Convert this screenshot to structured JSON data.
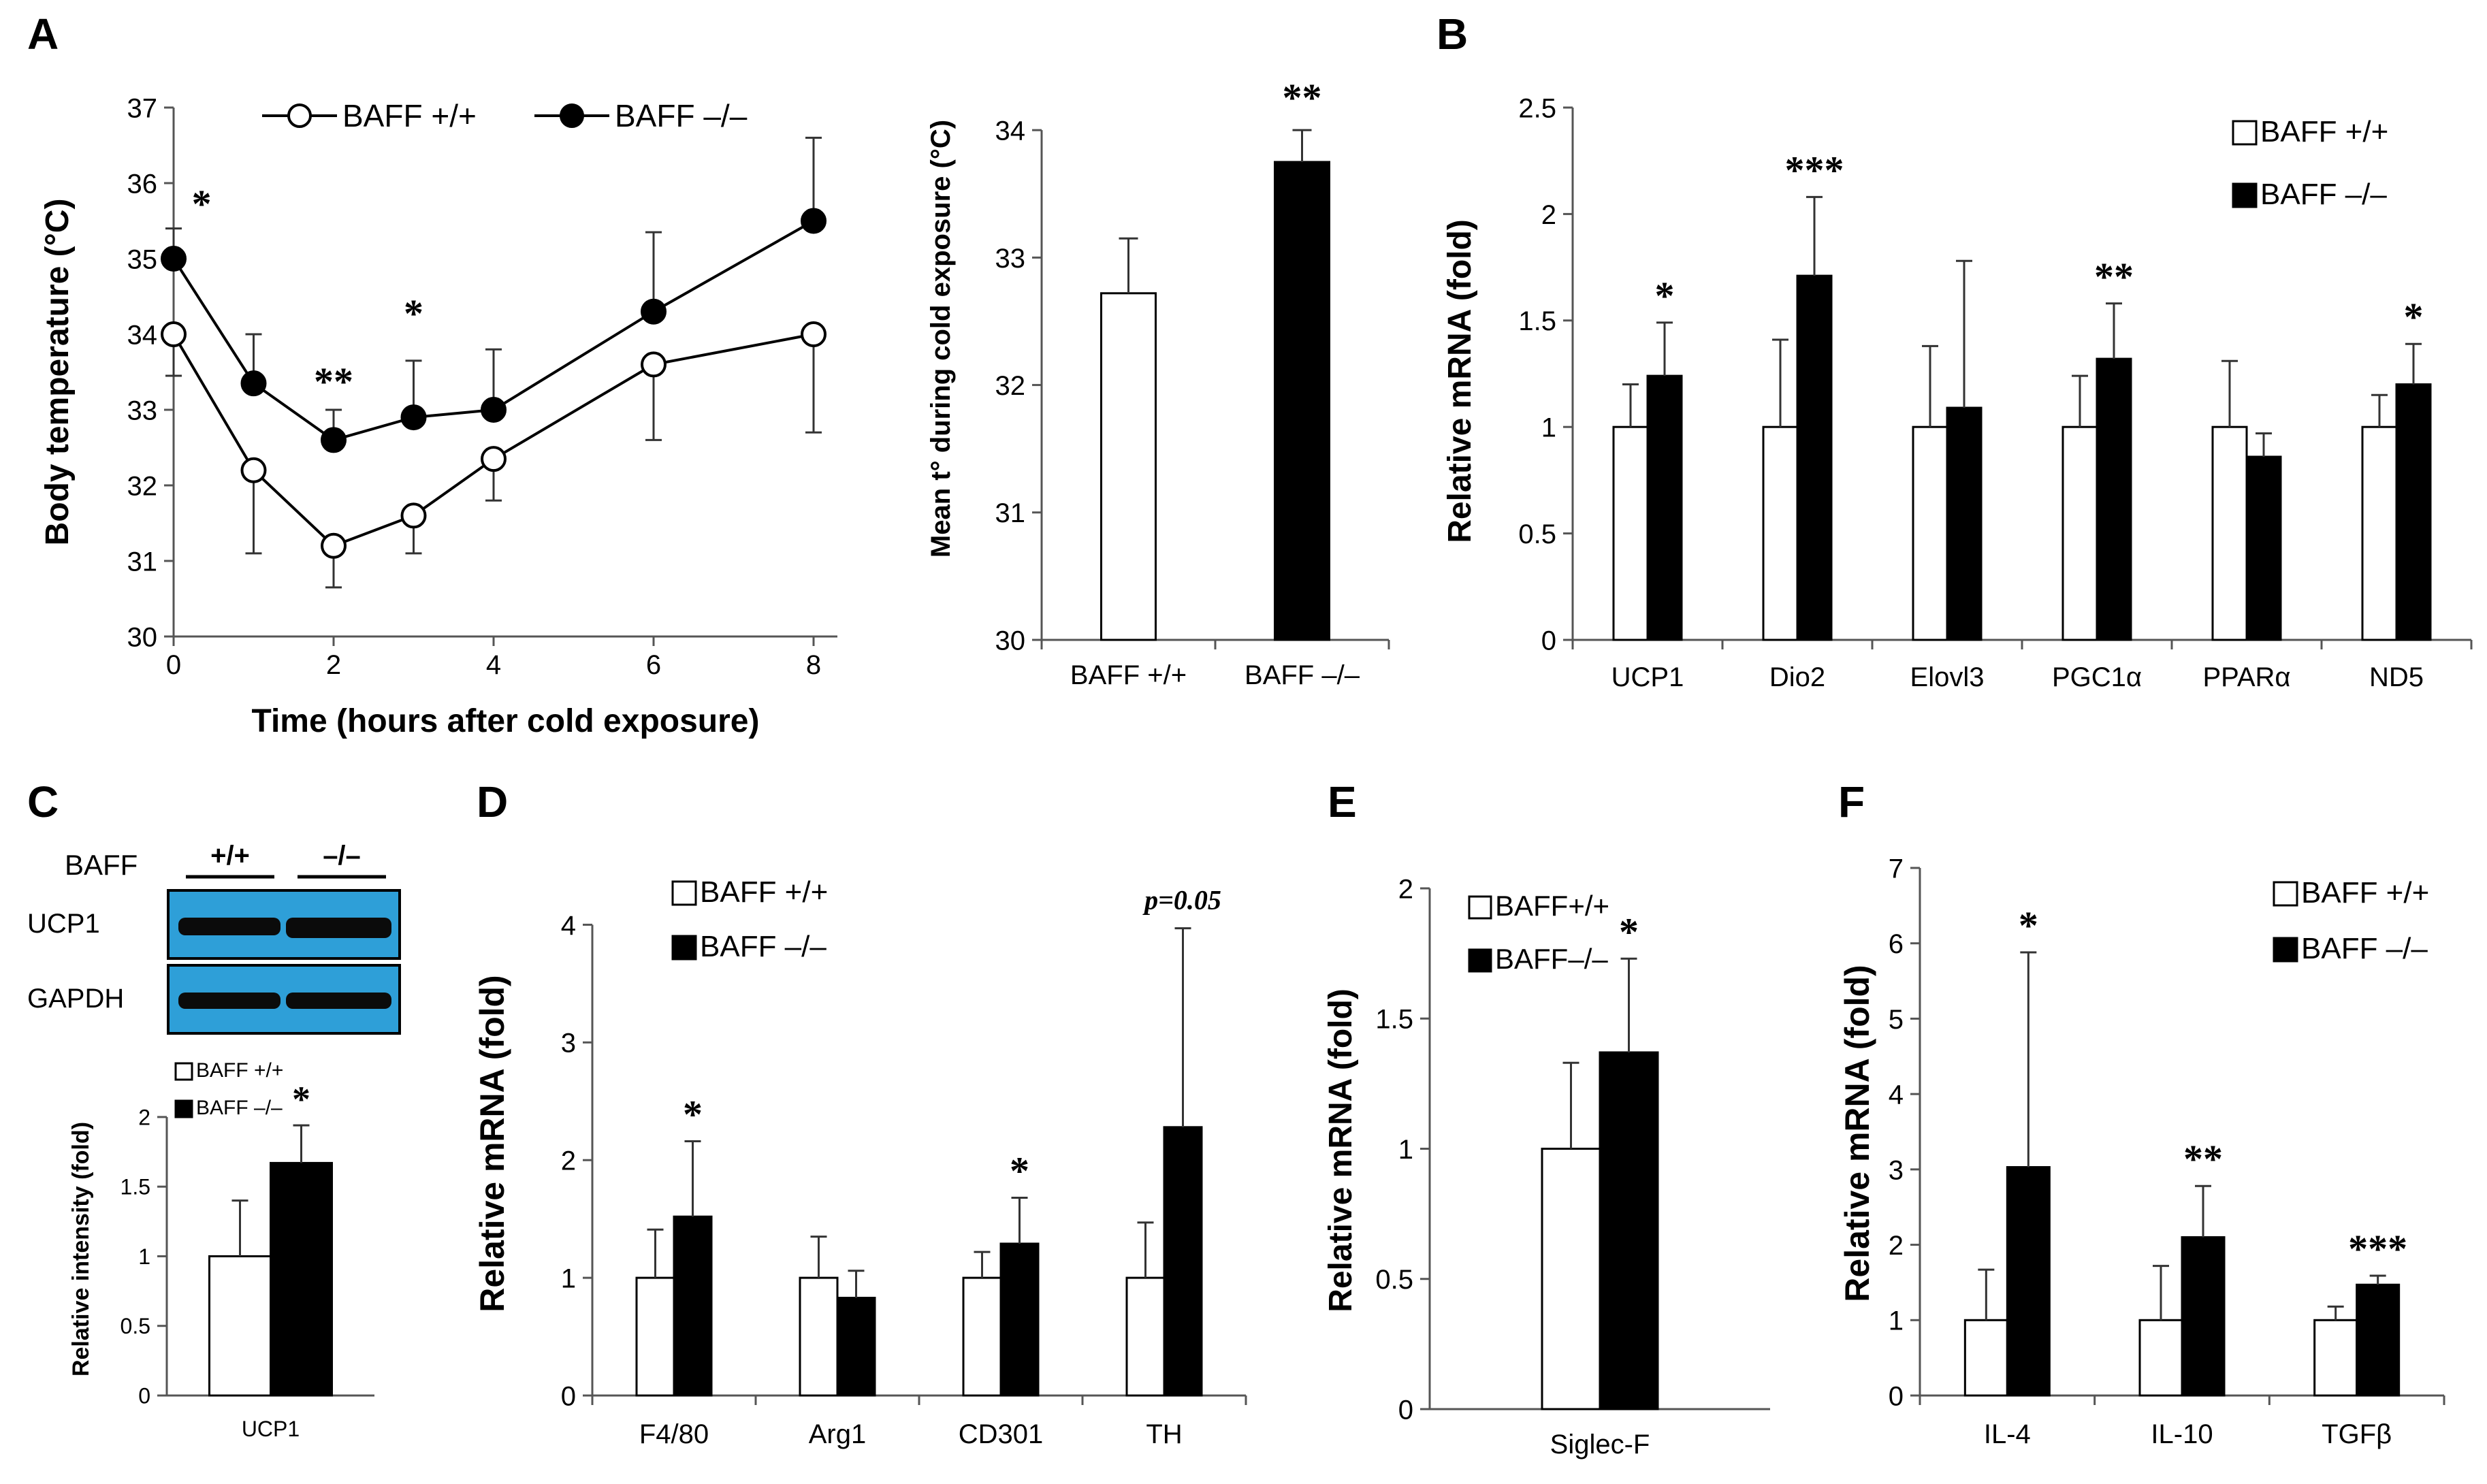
{
  "figure": {
    "panel_letters": {
      "A": "A",
      "B": "B",
      "C": "C",
      "D": "D",
      "E": "E",
      "F": "F"
    },
    "colors": {
      "wt_fill": "#ffffff",
      "ko_fill": "#000000",
      "blot_bg": "#2e9fd8",
      "band": "#0b0b0b"
    }
  },
  "chart_data": [
    {
      "id": "A1",
      "type": "line",
      "xlabel": "Time (hours after cold exposure)",
      "ylabel": "Body temperature (°C)",
      "ylim": [
        30,
        37
      ],
      "xlim": [
        0,
        8
      ],
      "xticks": [
        "0",
        "2",
        "4",
        "6",
        "8"
      ],
      "yticks": [
        "30",
        "31",
        "32",
        "33",
        "34",
        "35",
        "36",
        "37"
      ],
      "x": [
        0,
        1,
        2,
        3,
        4,
        6,
        8
      ],
      "series": [
        {
          "name": "BAFF +/+",
          "values": [
            34.0,
            32.2,
            31.2,
            31.6,
            32.35,
            33.6,
            34.0
          ],
          "errors": [
            0.55,
            1.1,
            0.55,
            0.5,
            0.55,
            1.0,
            1.3
          ],
          "marker": "open"
        },
        {
          "name": "BAFF –/–",
          "values": [
            35.0,
            33.35,
            32.6,
            32.9,
            33.0,
            34.3,
            35.5
          ],
          "errors": [
            0.4,
            0.65,
            0.4,
            0.75,
            0.8,
            1.05,
            1.1
          ],
          "marker": "filled"
        }
      ],
      "annotations": [
        {
          "x": 0.35,
          "y": 35.55,
          "text": "*"
        },
        {
          "x": 2,
          "y": 33.2,
          "text": "**"
        },
        {
          "x": 3,
          "y": 34.1,
          "text": "*"
        }
      ],
      "legend": "top"
    },
    {
      "id": "A2",
      "type": "bar",
      "ylabel": "Mean t° during cold exposure (°C)",
      "ylim": [
        30,
        34.3
      ],
      "yticks": [
        "30",
        "31",
        "32",
        "33",
        "34"
      ],
      "categories": [
        "BAFF +/+",
        "BAFF –/–"
      ],
      "values": [
        32.72,
        33.75
      ],
      "errors": [
        0.43,
        0.25
      ],
      "annotations": [
        {
          "index": 1,
          "text": "**"
        }
      ]
    },
    {
      "id": "B",
      "type": "bar",
      "ylabel": "Relative mRNA (fold)",
      "ylim": [
        0,
        2.5
      ],
      "yticks": [
        "0",
        "0.5",
        "1",
        "1.5",
        "2",
        "2.5"
      ],
      "categories": [
        "UCP1",
        "Dio2",
        "Elovl3",
        "PGC1α",
        "PPARα",
        "ND5"
      ],
      "series": [
        {
          "name": "BAFF +/+",
          "values": [
            1,
            1,
            1,
            1,
            1,
            1
          ],
          "errors": [
            0.2,
            0.41,
            0.38,
            0.24,
            0.31,
            0.15
          ]
        },
        {
          "name": "BAFF –/–",
          "values": [
            1.24,
            1.71,
            1.09,
            1.32,
            0.86,
            1.2
          ],
          "errors": [
            0.25,
            0.37,
            0.69,
            0.26,
            0.11,
            0.19
          ]
        }
      ],
      "annotations": [
        "*",
        "***",
        "",
        "**",
        "",
        "*"
      ],
      "legend": "top-right"
    },
    {
      "id": "C",
      "type": "bar",
      "ylabel": "Relative intensity (fold)",
      "ylim": [
        0,
        2.2
      ],
      "yticks": [
        "0",
        "0.5",
        "1",
        "1.5",
        "2"
      ],
      "categories": [
        "UCP1"
      ],
      "series": [
        {
          "name": "BAFF +/+",
          "values": [
            1
          ],
          "errors": [
            0.4
          ]
        },
        {
          "name": "BAFF –/–",
          "values": [
            1.67
          ],
          "errors": [
            0.27
          ]
        }
      ],
      "annotations": [
        "*"
      ],
      "blot": {
        "row_label": "BAFF",
        "lanes": [
          "+/+",
          "–/–"
        ],
        "rows": [
          "UCP1",
          "GAPDH"
        ]
      },
      "legend": "top-left"
    },
    {
      "id": "D",
      "type": "bar",
      "ylabel": "Relative mRNA (fold)",
      "ylim": [
        0,
        4.5
      ],
      "yticks": [
        "0",
        "1",
        "2",
        "3",
        "4"
      ],
      "categories": [
        "F4/80",
        "Arg1",
        "CD301",
        "TH"
      ],
      "series": [
        {
          "name": "BAFF +/+",
          "values": [
            1,
            1,
            1,
            1
          ],
          "errors": [
            0.41,
            0.35,
            0.22,
            0.47
          ]
        },
        {
          "name": "BAFF –/–",
          "values": [
            1.52,
            0.83,
            1.29,
            2.28
          ],
          "errors": [
            0.64,
            0.23,
            0.39,
            1.69
          ]
        }
      ],
      "annotations": [
        "*",
        "",
        "*",
        "p=0.05"
      ],
      "legend": "top-left"
    },
    {
      "id": "E",
      "type": "bar",
      "ylabel": "Relative mRNA (fold)",
      "ylim": [
        0,
        2
      ],
      "yticks": [
        "0",
        "0.5",
        "1",
        "1.5",
        "2"
      ],
      "categories": [
        "Siglec-F"
      ],
      "series": [
        {
          "name": "BAFF+/+",
          "values": [
            1
          ],
          "errors": [
            0.33
          ]
        },
        {
          "name": "BAFF–/–",
          "values": [
            1.37
          ],
          "errors": [
            0.36
          ]
        }
      ],
      "annotations": [
        "*"
      ],
      "legend": "top-left"
    },
    {
      "id": "F",
      "type": "bar",
      "ylabel": "Relative mRNA (fold)",
      "ylim": [
        0,
        7
      ],
      "yticks": [
        "0",
        "1",
        "2",
        "3",
        "4",
        "5",
        "6",
        "7"
      ],
      "categories": [
        "IL-4",
        "IL-10",
        "TGFβ"
      ],
      "series": [
        {
          "name": "BAFF +/+",
          "values": [
            1,
            1,
            1
          ],
          "errors": [
            0.67,
            0.72,
            0.18
          ]
        },
        {
          "name": "BAFF –/–",
          "values": [
            3.03,
            2.1,
            1.47
          ],
          "errors": [
            2.85,
            0.68,
            0.12
          ]
        }
      ],
      "annotations": [
        "*",
        "**",
        "***"
      ],
      "legend": "top-right"
    }
  ]
}
